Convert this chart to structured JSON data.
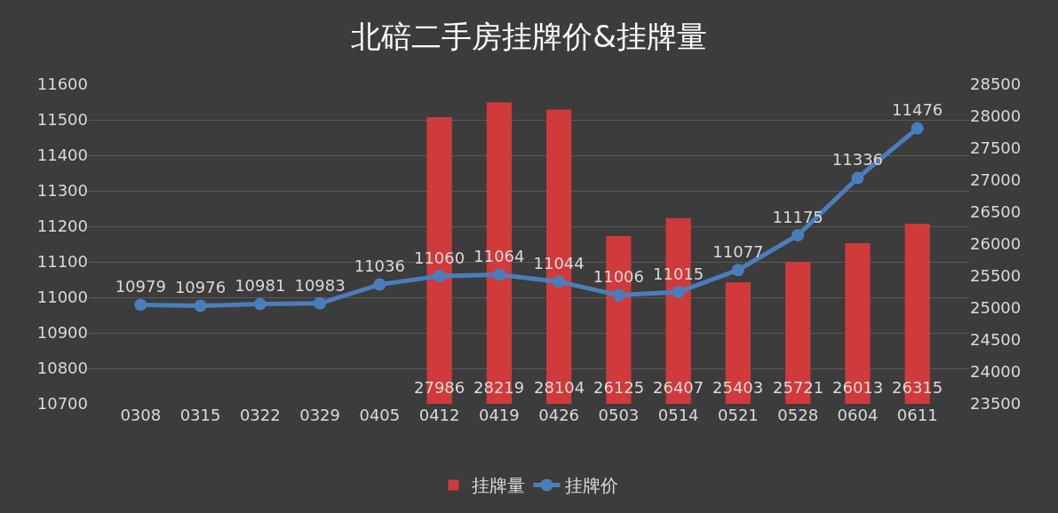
{
  "chart_data": {
    "type": "line",
    "title": "北碚二手房挂牌价&挂牌量",
    "categories": [
      "0308",
      "0315",
      "0322",
      "0329",
      "0405",
      "0412",
      "0419",
      "0426",
      "0503",
      "0514",
      "0521",
      "0528",
      "0604",
      "0611"
    ],
    "series": [
      {
        "name": "挂牌量",
        "type": "bar",
        "axis": "y2",
        "color": "#d03a3a",
        "values": [
          null,
          null,
          null,
          null,
          null,
          27986,
          28219,
          28104,
          26125,
          26407,
          25403,
          25721,
          26013,
          26315
        ]
      },
      {
        "name": "挂牌价",
        "color": "#4a7ebb",
        "values": [
          10979,
          10976,
          10981,
          10983,
          11036,
          11060,
          11064,
          11044,
          11006,
          11015,
          11077,
          11175,
          11336,
          11476
        ]
      }
    ],
    "ylim": [
      10700,
      11600
    ],
    "yticks": [
      10700,
      10800,
      10900,
      11000,
      11100,
      11200,
      11300,
      11400,
      11500,
      11600
    ],
    "y2lim": [
      23500,
      28500
    ],
    "y2ticks": [
      23500,
      24000,
      24500,
      25000,
      25500,
      26000,
      26500,
      27000,
      27500,
      28000,
      28500
    ],
    "data_labels": true,
    "grid": "y",
    "legend": "bottom",
    "marker": "circle",
    "line_style": "solid"
  }
}
